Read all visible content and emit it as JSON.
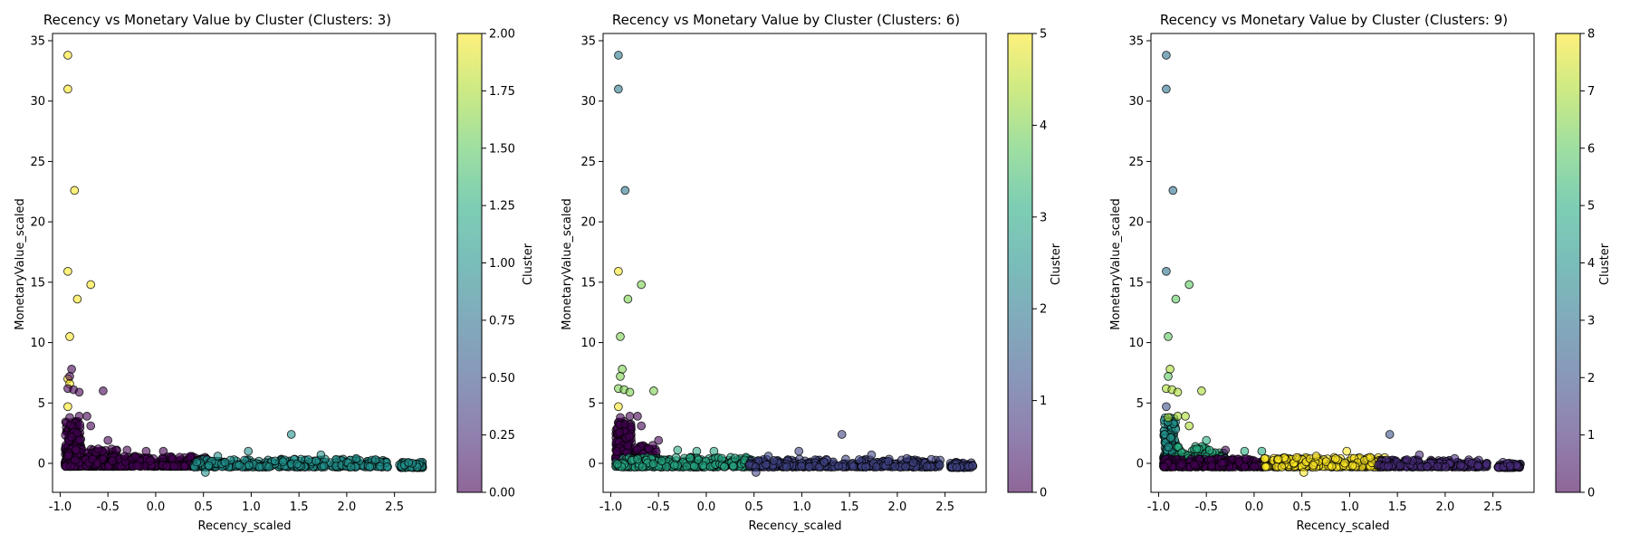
{
  "chart_data": [
    {
      "type": "scatter",
      "title": "Recency vs Monetary Value by Cluster (Clusters: 3)",
      "xlabel": "Recency_scaled",
      "ylabel": "MonetaryValue_scaled",
      "xlim": [
        -1.08,
        2.93
      ],
      "ylim": [
        -2.4,
        35.6
      ],
      "xticks": [
        "-1.0",
        "-0.5",
        "0.0",
        "0.5",
        "1.0",
        "1.5",
        "2.0",
        "2.5"
      ],
      "xtick_values": [
        -1.0,
        -0.5,
        0.0,
        0.5,
        1.0,
        1.5,
        2.0,
        2.5
      ],
      "yticks": [
        "0",
        "5",
        "10",
        "15",
        "20",
        "25",
        "30",
        "35"
      ],
      "ytick_values": [
        0,
        5,
        10,
        15,
        20,
        25,
        30,
        35
      ],
      "colorbar": {
        "label": "Cluster",
        "min": 0,
        "max": 2,
        "ticks": [
          "0.00",
          "0.25",
          "0.50",
          "0.75",
          "1.00",
          "1.25",
          "1.50",
          "1.75",
          "2.00"
        ],
        "tick_values": [
          0,
          0.25,
          0.5,
          0.75,
          1.0,
          1.25,
          1.5,
          1.75,
          2.0
        ]
      },
      "points": [
        [
          -0.92,
          33.8,
          2
        ],
        [
          -0.92,
          31.0,
          2
        ],
        [
          -0.85,
          22.6,
          2
        ],
        [
          -0.92,
          15.9,
          2
        ],
        [
          -0.68,
          14.8,
          2
        ],
        [
          -0.82,
          13.6,
          2
        ],
        [
          -0.9,
          10.5,
          2
        ],
        [
          -0.92,
          7.0,
          2
        ],
        [
          -0.9,
          6.6,
          2
        ],
        [
          -0.92,
          4.7,
          2
        ],
        [
          -0.88,
          7.8,
          0
        ],
        [
          -0.9,
          7.2,
          0
        ],
        [
          -0.92,
          6.2,
          0
        ],
        [
          -0.86,
          6.1,
          0
        ],
        [
          -0.8,
          5.9,
          0
        ],
        [
          -0.55,
          6.0,
          0
        ],
        [
          -0.9,
          3.8,
          0
        ],
        [
          -0.8,
          3.9,
          0
        ],
        [
          -0.72,
          3.9,
          0
        ],
        [
          -0.68,
          3.1,
          0
        ],
        [
          -0.5,
          1.9,
          0
        ],
        [
          -0.6,
          1.2,
          0
        ],
        [
          -0.3,
          1.1,
          0
        ],
        [
          -0.1,
          1.0,
          0
        ],
        [
          0.08,
          1.0,
          0
        ],
        [
          1.42,
          2.4,
          1
        ],
        [
          0.97,
          1.0,
          1
        ],
        [
          1.73,
          0.7,
          1
        ],
        [
          0.65,
          0.6,
          1
        ],
        [
          0.52,
          -0.75,
          1
        ],
        [
          2.1,
          0.4,
          1
        ],
        [
          1.6,
          0.3,
          1
        ],
        [
          2.3,
          0.3,
          1
        ],
        [
          1.25,
          0.2,
          1
        ]
      ],
      "dense": [
        {
          "x": [
            -0.95,
            -0.78
          ],
          "y": [
            -0.25,
            3.5
          ],
          "n": 220,
          "c": 0
        },
        {
          "x": [
            -0.95,
            -0.4
          ],
          "y": [
            -0.25,
            1.2
          ],
          "n": 260,
          "c": 0
        },
        {
          "x": [
            -0.5,
            0.55
          ],
          "y": [
            -0.25,
            0.6
          ],
          "n": 320,
          "c": 0
        },
        {
          "x": [
            0.4,
            2.45
          ],
          "y": [
            -0.3,
            0.35
          ],
          "n": 330,
          "c": 1
        },
        {
          "x": [
            2.55,
            2.8
          ],
          "y": [
            -0.35,
            0.1
          ],
          "n": 60,
          "c": 1
        }
      ]
    },
    {
      "type": "scatter",
      "title": "Recency vs Monetary Value by Cluster (Clusters: 6)",
      "xlabel": "Recency_scaled",
      "ylabel": "MonetaryValue_scaled",
      "xlim": [
        -1.08,
        2.93
      ],
      "ylim": [
        -2.4,
        35.6
      ],
      "xticks": [
        "-1.0",
        "-0.5",
        "0.0",
        "0.5",
        "1.0",
        "1.5",
        "2.0",
        "2.5"
      ],
      "xtick_values": [
        -1.0,
        -0.5,
        0.0,
        0.5,
        1.0,
        1.5,
        2.0,
        2.5
      ],
      "yticks": [
        "0",
        "5",
        "10",
        "15",
        "20",
        "25",
        "30",
        "35"
      ],
      "ytick_values": [
        0,
        5,
        10,
        15,
        20,
        25,
        30,
        35
      ],
      "colorbar": {
        "label": "Cluster",
        "min": 0,
        "max": 5,
        "ticks": [
          "0",
          "1",
          "2",
          "3",
          "4",
          "5"
        ],
        "tick_values": [
          0,
          1,
          2,
          3,
          4,
          5
        ]
      },
      "points": [
        [
          -0.92,
          33.8,
          2
        ],
        [
          -0.92,
          31.0,
          2
        ],
        [
          -0.85,
          22.6,
          2
        ],
        [
          -0.92,
          15.9,
          5
        ],
        [
          -0.68,
          14.8,
          4
        ],
        [
          -0.82,
          13.6,
          4
        ],
        [
          -0.9,
          10.5,
          4
        ],
        [
          -0.88,
          7.8,
          4
        ],
        [
          -0.9,
          7.2,
          4
        ],
        [
          -0.92,
          6.2,
          4
        ],
        [
          -0.86,
          6.1,
          4
        ],
        [
          -0.8,
          5.9,
          4
        ],
        [
          -0.55,
          6.0,
          4
        ],
        [
          -0.92,
          4.7,
          5
        ],
        [
          -0.9,
          3.8,
          0
        ],
        [
          -0.8,
          3.9,
          0
        ],
        [
          -0.72,
          3.9,
          0
        ],
        [
          -0.68,
          3.1,
          0
        ],
        [
          -0.5,
          1.9,
          0
        ],
        [
          -0.6,
          1.2,
          0
        ],
        [
          -0.3,
          1.1,
          3
        ],
        [
          -0.1,
          1.0,
          3
        ],
        [
          0.08,
          1.0,
          3
        ],
        [
          1.42,
          2.4,
          1
        ],
        [
          0.97,
          1.0,
          1
        ],
        [
          1.73,
          0.7,
          1
        ],
        [
          0.65,
          0.6,
          1
        ],
        [
          0.52,
          -0.75,
          1
        ],
        [
          2.1,
          0.4,
          1
        ],
        [
          1.6,
          0.3,
          1
        ]
      ],
      "dense": [
        {
          "x": [
            -0.95,
            -0.78
          ],
          "y": [
            -0.25,
            3.5
          ],
          "n": 200,
          "c": 0
        },
        {
          "x": [
            -0.95,
            -0.5
          ],
          "y": [
            -0.25,
            1.5
          ],
          "n": 160,
          "c": 0
        },
        {
          "x": [
            -0.95,
            0.55
          ],
          "y": [
            -0.3,
            0.5
          ],
          "n": 300,
          "c": 3
        },
        {
          "x": [
            0.45,
            2.45
          ],
          "y": [
            -0.3,
            0.35
          ],
          "n": 330,
          "c": 1
        },
        {
          "x": [
            2.55,
            2.8
          ],
          "y": [
            -0.35,
            0.1
          ],
          "n": 60,
          "c": 1
        }
      ]
    },
    {
      "type": "scatter",
      "title": "Recency vs Monetary Value by Cluster (Clusters: 9)",
      "xlabel": "Recency_scaled",
      "ylabel": "MonetaryValue_scaled",
      "xlim": [
        -1.08,
        2.93
      ],
      "ylim": [
        -2.4,
        35.6
      ],
      "xticks": [
        "-1.0",
        "-0.5",
        "0.0",
        "0.5",
        "1.0",
        "1.5",
        "2.0",
        "2.5"
      ],
      "xtick_values": [
        -1.0,
        -0.5,
        0.0,
        0.5,
        1.0,
        1.5,
        2.0,
        2.5
      ],
      "yticks": [
        "0",
        "5",
        "10",
        "15",
        "20",
        "25",
        "30",
        "35"
      ],
      "ytick_values": [
        0,
        5,
        10,
        15,
        20,
        25,
        30,
        35
      ],
      "colorbar": {
        "label": "Cluster",
        "min": 0,
        "max": 8,
        "ticks": [
          "0",
          "1",
          "2",
          "3",
          "4",
          "5",
          "6",
          "7",
          "8"
        ],
        "tick_values": [
          0,
          1,
          2,
          3,
          4,
          5,
          6,
          7,
          8
        ]
      },
      "points": [
        [
          -0.92,
          33.8,
          3
        ],
        [
          -0.92,
          31.0,
          3
        ],
        [
          -0.85,
          22.6,
          3
        ],
        [
          -0.92,
          15.9,
          3
        ],
        [
          -0.68,
          14.8,
          6
        ],
        [
          -0.82,
          13.6,
          6
        ],
        [
          -0.9,
          10.5,
          6
        ],
        [
          -0.88,
          7.8,
          7
        ],
        [
          -0.9,
          7.2,
          6
        ],
        [
          -0.92,
          6.2,
          7
        ],
        [
          -0.86,
          6.1,
          7
        ],
        [
          -0.8,
          5.9,
          7
        ],
        [
          -0.55,
          6.0,
          7
        ],
        [
          -0.92,
          4.7,
          2
        ],
        [
          -0.9,
          3.8,
          7
        ],
        [
          -0.8,
          3.9,
          7
        ],
        [
          -0.72,
          3.9,
          7
        ],
        [
          -0.68,
          3.1,
          7
        ],
        [
          -0.5,
          1.9,
          5
        ],
        [
          -0.6,
          1.2,
          5
        ],
        [
          -0.3,
          1.1,
          0
        ],
        [
          -0.1,
          1.0,
          5
        ],
        [
          0.08,
          1.0,
          5
        ],
        [
          1.42,
          2.4,
          2
        ],
        [
          0.97,
          1.0,
          8
        ],
        [
          1.73,
          0.7,
          1
        ],
        [
          0.65,
          0.6,
          8
        ],
        [
          0.52,
          -0.75,
          8
        ],
        [
          2.1,
          0.4,
          1
        ],
        [
          1.6,
          0.3,
          1
        ]
      ],
      "dense": [
        {
          "x": [
            -0.95,
            -0.82
          ],
          "y": [
            -0.25,
            3.8
          ],
          "n": 180,
          "c": 4
        },
        {
          "x": [
            -0.82,
            -0.3
          ],
          "y": [
            -0.25,
            1.4
          ],
          "n": 140,
          "c": 5
        },
        {
          "x": [
            -0.95,
            0.1
          ],
          "y": [
            -0.3,
            0.4
          ],
          "n": 260,
          "c": 0
        },
        {
          "x": [
            0.1,
            1.4
          ],
          "y": [
            -0.3,
            0.5
          ],
          "n": 260,
          "c": 8
        },
        {
          "x": [
            1.3,
            2.45
          ],
          "y": [
            -0.3,
            0.3
          ],
          "n": 200,
          "c": 1
        },
        {
          "x": [
            2.55,
            2.8
          ],
          "y": [
            -0.35,
            0.1
          ],
          "n": 60,
          "c": 1
        }
      ]
    }
  ]
}
